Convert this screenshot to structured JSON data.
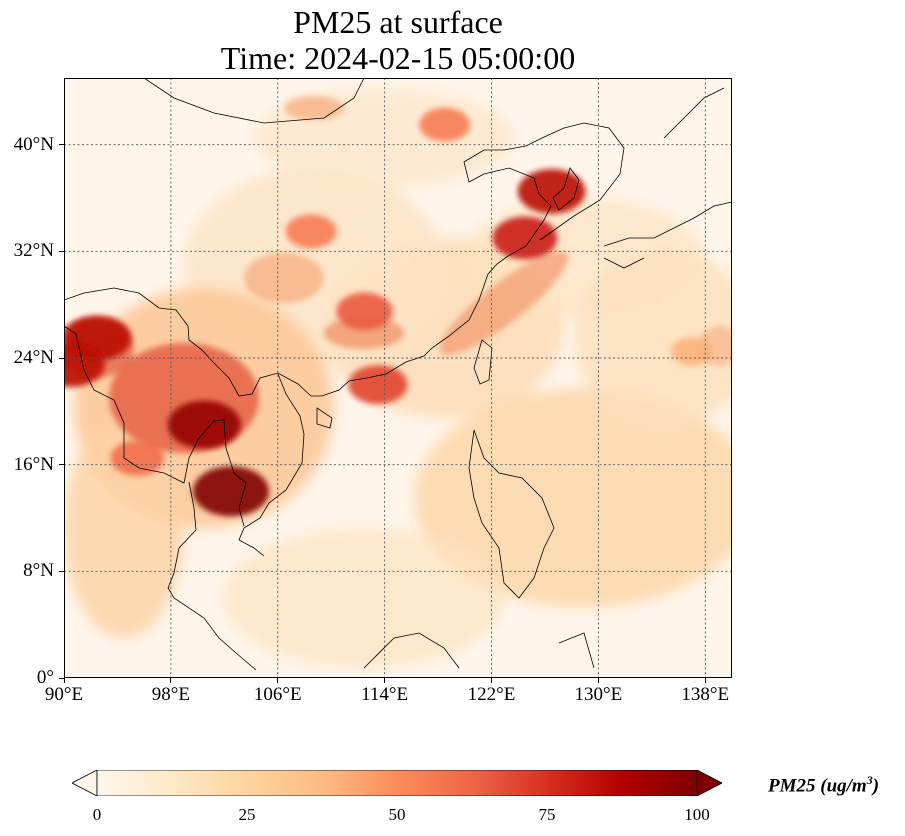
{
  "map": {
    "title_line1": "PM25 at surface",
    "title_line2": "Time: 2024-02-15 05:00:00",
    "extent": {
      "lon_min": 90,
      "lon_max": 140,
      "lat_min": 0,
      "lat_max": 45
    },
    "lat_labels": [
      {
        "lat": 40,
        "label": "40°N"
      },
      {
        "lat": 32,
        "label": "32°N"
      },
      {
        "lat": 24,
        "label": "24°N"
      },
      {
        "lat": 16,
        "label": "16°N"
      },
      {
        "lat": 8,
        "label": "8°N"
      },
      {
        "lat": 0,
        "label": "0°"
      }
    ],
    "lon_labels": [
      {
        "lon": 90,
        "label": "90°E"
      },
      {
        "lon": 98,
        "label": "98°E"
      },
      {
        "lon": 106,
        "label": "106°E"
      },
      {
        "lon": 114,
        "label": "114°E"
      },
      {
        "lon": 122,
        "label": "122°E"
      },
      {
        "lon": 130,
        "label": "130°E"
      },
      {
        "lon": 138,
        "label": "138°E"
      }
    ],
    "gridlines": true
  },
  "colorbar": {
    "colormap": "OrRd",
    "min": 0,
    "max": 100,
    "extend": "both",
    "ticks": [
      {
        "value": 0,
        "label": "0"
      },
      {
        "value": 25,
        "label": "25"
      },
      {
        "value": 50,
        "label": "50"
      },
      {
        "value": 75,
        "label": "75"
      },
      {
        "value": 100,
        "label": "100"
      }
    ],
    "label_main": "PM25 (ug/m",
    "label_exp": "3",
    "label_close": ")",
    "colors": [
      "#fff7ec",
      "#fee8c8",
      "#fdd49e",
      "#fdbb84",
      "#fc8d59",
      "#ef6548",
      "#d7301f",
      "#b30000",
      "#7f0000"
    ]
  },
  "chart_data": {
    "type": "heatmap",
    "variable": "PM25",
    "units": "ug/m3",
    "x_range": [
      90,
      140
    ],
    "y_range": [
      0,
      45
    ],
    "value_range": [
      0,
      100
    ],
    "hotspots": [
      {
        "lon": 102.5,
        "lat": 14,
        "value": 100
      },
      {
        "lon": 100.5,
        "lat": 19,
        "value": 95
      },
      {
        "lon": 92.5,
        "lat": 25.5,
        "value": 85
      },
      {
        "lon": 90.5,
        "lat": 23.5,
        "value": 85
      },
      {
        "lon": 124.5,
        "lat": 33,
        "value": 80
      },
      {
        "lon": 126.5,
        "lat": 36.5,
        "value": 85
      },
      {
        "lon": 118.5,
        "lat": 41.5,
        "value": 55
      },
      {
        "lon": 112.5,
        "lat": 27.5,
        "value": 65
      },
      {
        "lon": 113.5,
        "lat": 22,
        "value": 70
      },
      {
        "lon": 108.5,
        "lat": 33.5,
        "value": 55
      },
      {
        "lon": 95.5,
        "lat": 16.5,
        "value": 60
      },
      {
        "lon": 137,
        "lat": 24.5,
        "value": 40
      }
    ]
  }
}
